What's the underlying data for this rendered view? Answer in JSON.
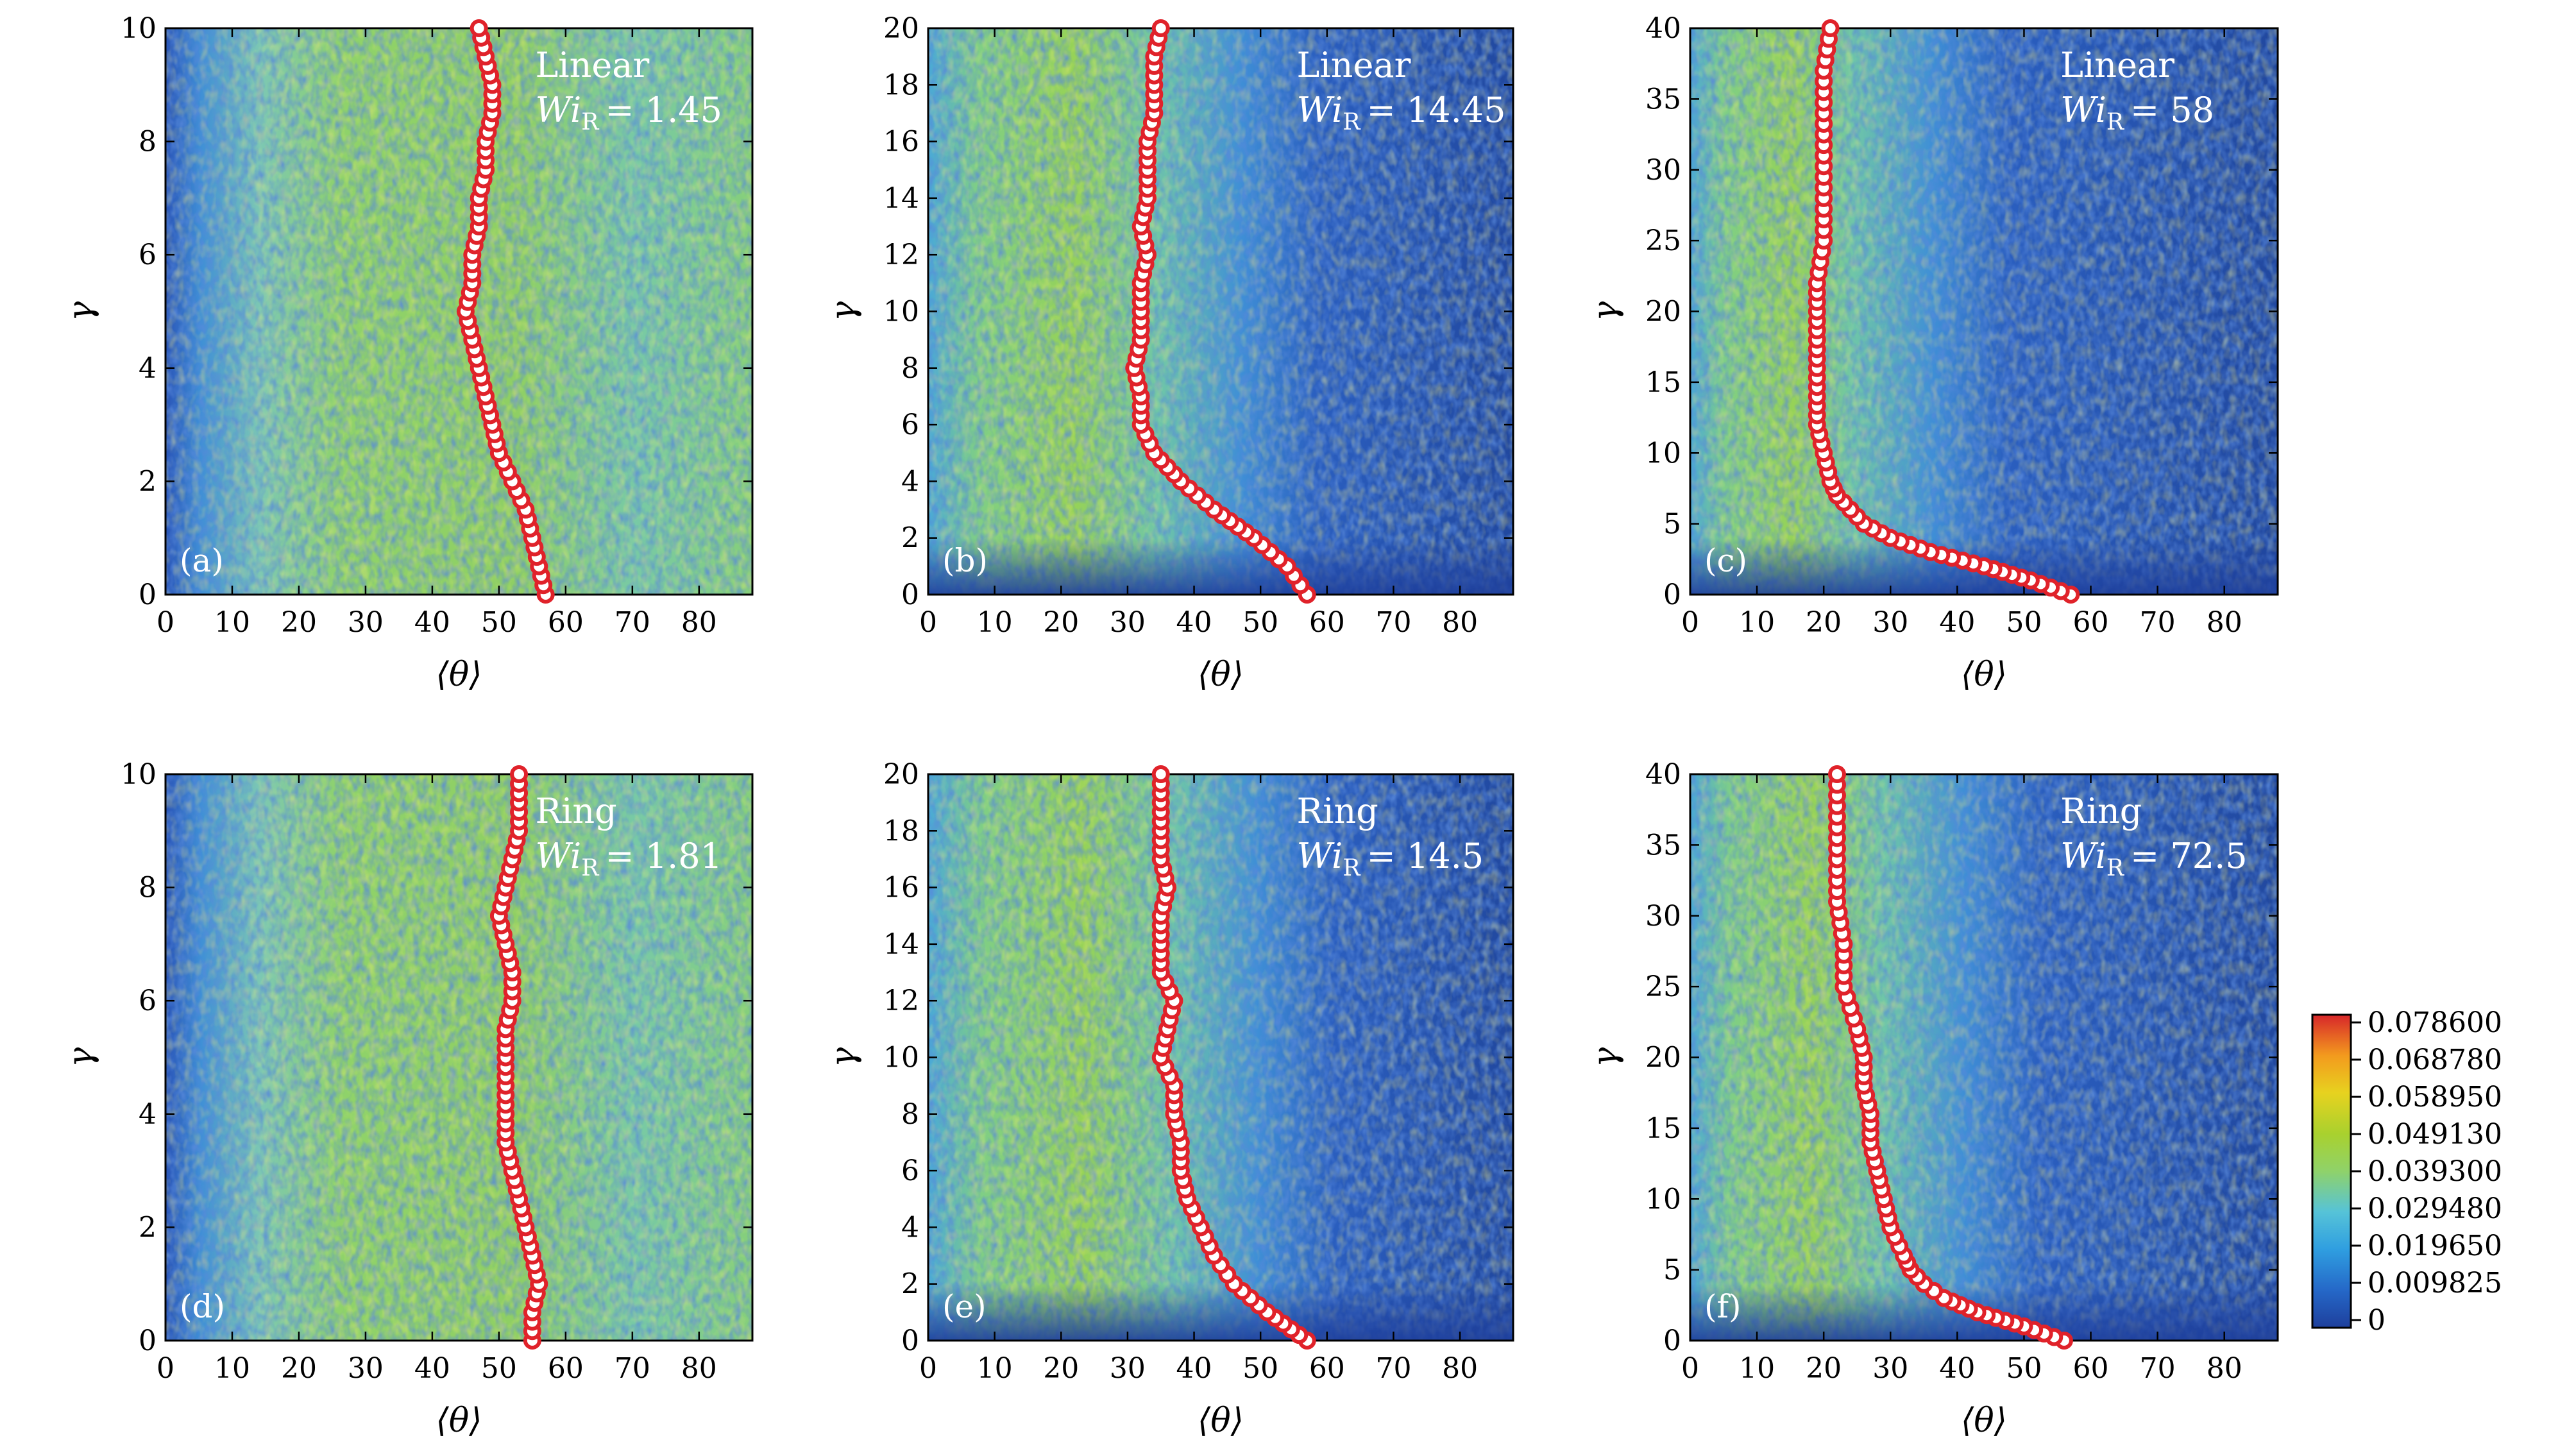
{
  "figure": {
    "colorbar": {
      "ticks": [
        "0.078600",
        "0.068780",
        "0.058950",
        "0.049130",
        "0.039300",
        "0.029480",
        "0.019650",
        "0.009825",
        "0"
      ],
      "colors": [
        "#1e3f9c",
        "#2568c8",
        "#2f9ee0",
        "#56c3d8",
        "#8fd26a",
        "#a9d12e",
        "#e7d21f",
        "#f39a1e",
        "#d7262a"
      ]
    }
  },
  "chart_data": [
    {
      "type": "heatmap",
      "panel_label": "(a)",
      "annotation": {
        "model": "Linear",
        "wi_symbol": "Wi",
        "wi_sub": "R",
        "wi_value": "= 1.45"
      },
      "xlabel": "⟨θ⟩",
      "ylabel": "γ",
      "xlim": [
        0,
        88
      ],
      "ylim": [
        0,
        10
      ],
      "xticks": [
        "0",
        "10",
        "20",
        "30",
        "40",
        "50",
        "60",
        "70",
        "80"
      ],
      "yticks": [
        "0",
        "2",
        "4",
        "6",
        "8",
        "10"
      ],
      "mean_theta": {
        "y": [
          0,
          0.5,
          1,
          1.5,
          2,
          2.5,
          3,
          3.5,
          4,
          4.5,
          5,
          5.5,
          6,
          6.5,
          7,
          7.5,
          8,
          8.5,
          9,
          9.5,
          10
        ],
        "x": [
          57,
          56,
          55,
          54,
          52,
          50,
          49,
          48,
          47,
          46,
          45,
          46,
          46,
          47,
          47,
          48,
          48,
          49,
          49,
          48,
          47
        ]
      }
    },
    {
      "type": "heatmap",
      "panel_label": "(b)",
      "annotation": {
        "model": "Linear",
        "wi_symbol": "Wi",
        "wi_sub": "R",
        "wi_value": "= 14.45"
      },
      "xlabel": "⟨θ⟩",
      "ylabel": "γ",
      "xlim": [
        0,
        88
      ],
      "ylim": [
        0,
        20
      ],
      "xticks": [
        "0",
        "10",
        "20",
        "30",
        "40",
        "50",
        "60",
        "70",
        "80"
      ],
      "yticks": [
        "0",
        "2",
        "4",
        "6",
        "8",
        "10",
        "12",
        "14",
        "16",
        "18",
        "20"
      ],
      "mean_theta": {
        "y": [
          0,
          1,
          2,
          3,
          4,
          5,
          6,
          7,
          8,
          9,
          10,
          11,
          12,
          13,
          14,
          15,
          16,
          17,
          18,
          19,
          20
        ],
        "x": [
          57,
          54,
          49,
          43,
          38,
          34,
          32,
          32,
          31,
          32,
          32,
          32,
          33,
          32,
          33,
          33,
          33,
          34,
          34,
          34,
          35
        ]
      }
    },
    {
      "type": "heatmap",
      "panel_label": "(c)",
      "annotation": {
        "model": "Linear",
        "wi_symbol": "Wi",
        "wi_sub": "R",
        "wi_value": "= 58"
      },
      "xlabel": "⟨θ⟩",
      "ylabel": "γ",
      "xlim": [
        0,
        88
      ],
      "ylim": [
        0,
        40
      ],
      "xticks": [
        "0",
        "10",
        "20",
        "30",
        "40",
        "50",
        "60",
        "70",
        "80"
      ],
      "yticks": [
        "0",
        "5",
        "10",
        "15",
        "20",
        "25",
        "30",
        "35",
        "40"
      ],
      "mean_theta": {
        "y": [
          0,
          1,
          2,
          3,
          4,
          5,
          6,
          7,
          8,
          10,
          12,
          14,
          16,
          18,
          20,
          22,
          25,
          28,
          31,
          34,
          37,
          40
        ],
        "x": [
          57,
          51,
          44,
          36,
          30,
          26,
          24,
          22,
          21,
          20,
          19,
          19,
          19,
          19,
          19,
          19,
          20,
          20,
          20,
          20,
          20,
          21
        ]
      }
    },
    {
      "type": "heatmap",
      "panel_label": "(d)",
      "annotation": {
        "model": "Ring",
        "wi_symbol": "Wi",
        "wi_sub": "R",
        "wi_value": "= 1.81"
      },
      "xlabel": "⟨θ⟩",
      "ylabel": "γ",
      "xlim": [
        0,
        88
      ],
      "ylim": [
        0,
        10
      ],
      "xticks": [
        "0",
        "10",
        "20",
        "30",
        "40",
        "50",
        "60",
        "70",
        "80"
      ],
      "yticks": [
        "0",
        "2",
        "4",
        "6",
        "8",
        "10"
      ],
      "mean_theta": {
        "y": [
          0,
          0.5,
          1,
          1.5,
          2,
          2.5,
          3,
          3.5,
          4,
          4.5,
          5,
          5.5,
          6,
          6.5,
          7,
          7.5,
          8,
          8.5,
          9,
          9.5,
          10
        ],
        "x": [
          55,
          55,
          56,
          55,
          54,
          53,
          52,
          51,
          51,
          51,
          51,
          51,
          52,
          52,
          51,
          50,
          51,
          52,
          53,
          53,
          53
        ]
      }
    },
    {
      "type": "heatmap",
      "panel_label": "(e)",
      "annotation": {
        "model": "Ring",
        "wi_symbol": "Wi",
        "wi_sub": "R",
        "wi_value": "= 14.5"
      },
      "xlabel": "⟨θ⟩",
      "ylabel": "γ",
      "xlim": [
        0,
        88
      ],
      "ylim": [
        0,
        20
      ],
      "xticks": [
        "0",
        "10",
        "20",
        "30",
        "40",
        "50",
        "60",
        "70",
        "80"
      ],
      "yticks": [
        "0",
        "2",
        "4",
        "6",
        "8",
        "10",
        "12",
        "14",
        "16",
        "18",
        "20"
      ],
      "mean_theta": {
        "y": [
          0,
          1,
          2,
          3,
          4,
          5,
          6,
          7,
          8,
          9,
          10,
          11,
          12,
          13,
          14,
          15,
          16,
          17,
          18,
          19,
          20
        ],
        "x": [
          57,
          51,
          46,
          43,
          41,
          39,
          38,
          38,
          37,
          37,
          35,
          36,
          37,
          35,
          35,
          35,
          36,
          35,
          35,
          35,
          35
        ]
      }
    },
    {
      "type": "heatmap",
      "panel_label": "(f)",
      "annotation": {
        "model": "Ring",
        "wi_symbol": "Wi",
        "wi_sub": "R",
        "wi_value": "= 72.5"
      },
      "xlabel": "⟨θ⟩",
      "ylabel": "γ",
      "xlim": [
        0,
        88
      ],
      "ylim": [
        0,
        40
      ],
      "xticks": [
        "0",
        "10",
        "20",
        "30",
        "40",
        "50",
        "60",
        "70",
        "80"
      ],
      "yticks": [
        "0",
        "5",
        "10",
        "15",
        "20",
        "25",
        "30",
        "35",
        "40"
      ],
      "mean_theta": {
        "y": [
          0,
          1,
          2,
          3,
          4,
          5,
          6,
          8,
          10,
          12,
          14,
          16,
          18,
          20,
          22,
          25,
          28,
          31,
          34,
          37,
          40
        ],
        "x": [
          56,
          50,
          43,
          38,
          35,
          33,
          32,
          30,
          29,
          28,
          27,
          27,
          26,
          26,
          25,
          23,
          23,
          22,
          22,
          22,
          22
        ]
      }
    }
  ]
}
